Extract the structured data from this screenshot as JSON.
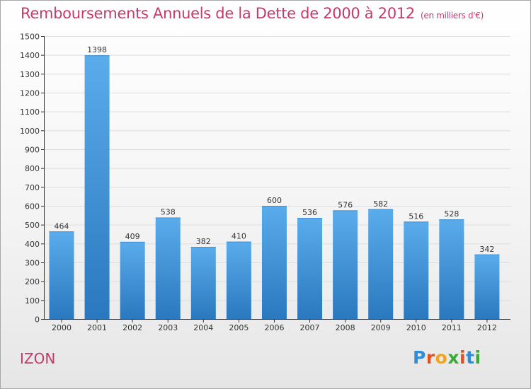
{
  "header": {
    "title": "Remboursements Annuels de la Dette de 2000 à 2012",
    "subtitle": "(en milliers d'€)"
  },
  "footer": {
    "town": "IZON",
    "logo_text": "Proxiti"
  },
  "colors": {
    "title": "#c8386b",
    "bar_top": "#5aaceb",
    "bar_bottom": "#2a78bf",
    "grid": "#dddddd",
    "axis": "#333333"
  },
  "chart_data": {
    "type": "bar",
    "title": "Remboursements Annuels de la Dette de 2000 à 2012",
    "subtitle": "(en milliers d'€)",
    "categories": [
      "2000",
      "2001",
      "2002",
      "2003",
      "2004",
      "2005",
      "2006",
      "2007",
      "2008",
      "2009",
      "2010",
      "2011",
      "2012"
    ],
    "values": [
      464,
      1398,
      409,
      538,
      382,
      410,
      600,
      536,
      576,
      582,
      516,
      528,
      342
    ],
    "ylim": [
      0,
      1500
    ],
    "yticks": [
      0,
      100,
      200,
      300,
      400,
      500,
      600,
      700,
      800,
      900,
      1000,
      1100,
      1200,
      1300,
      1400,
      1500
    ],
    "grid": true,
    "data_labels": true
  }
}
